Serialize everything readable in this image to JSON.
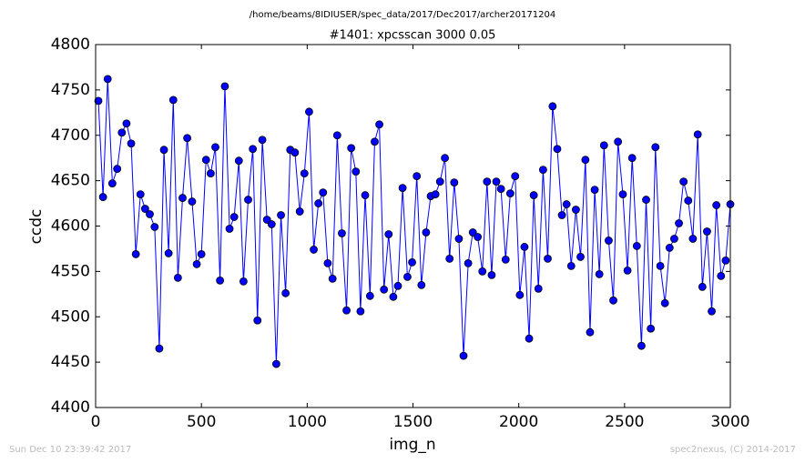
{
  "chart_data": {
    "type": "line",
    "suptitle": "/home/beams/8IDIUSER/spec_data/2017/Dec2017/archer20171204",
    "title": "#1401: xpcsscan 3000 0.05",
    "xlabel": "img_n",
    "ylabel": "ccdc",
    "footer": {
      "left": "Sun Dec 10 23:39:42 2017",
      "right": "spec2nexus, (C) 2014-2017"
    },
    "color": "#0000ff",
    "xlim": [
      0,
      3000
    ],
    "xticks": [
      0,
      500,
      1000,
      1500,
      2000,
      2500,
      3000
    ],
    "ylim": [
      4400,
      4800
    ],
    "yticks": [
      4400,
      4450,
      4500,
      4550,
      4600,
      4650,
      4700,
      4750,
      4800
    ],
    "x": [
      13,
      35,
      57,
      79,
      102,
      124,
      146,
      168,
      190,
      212,
      234,
      256,
      279,
      301,
      323,
      345,
      367,
      389,
      411,
      433,
      456,
      478,
      500,
      522,
      544,
      566,
      588,
      611,
      633,
      655,
      677,
      699,
      721,
      743,
      765,
      788,
      810,
      832,
      854,
      876,
      898,
      920,
      942,
      965,
      987,
      1009,
      1031,
      1053,
      1075,
      1097,
      1120,
      1142,
      1164,
      1186,
      1208,
      1230,
      1252,
      1274,
      1297,
      1319,
      1341,
      1363,
      1385,
      1407,
      1429,
      1451,
      1474,
      1496,
      1518,
      1540,
      1562,
      1584,
      1606,
      1628,
      1651,
      1673,
      1695,
      1717,
      1739,
      1761,
      1783,
      1806,
      1828,
      1850,
      1872,
      1894,
      1916,
      1938,
      1960,
      1983,
      2005,
      2027,
      2049,
      2071,
      2093,
      2115,
      2137,
      2160,
      2182,
      2204,
      2226,
      2248,
      2270,
      2292,
      2315,
      2337,
      2359,
      2381,
      2403,
      2425,
      2447,
      2469,
      2492,
      2514,
      2536,
      2558,
      2580,
      2602,
      2624,
      2646,
      2669,
      2691,
      2713,
      2735,
      2757,
      2779,
      2801,
      2823,
      2846,
      2868,
      2890,
      2912,
      2934,
      2956,
      2978,
      3000
    ],
    "values": [
      4738,
      4632,
      4762,
      4647,
      4663,
      4703,
      4713,
      4691,
      4569,
      4635,
      4619,
      4613,
      4599,
      4465,
      4684,
      4570,
      4739,
      4543,
      4631,
      4697,
      4627,
      4558,
      4569,
      4673,
      4658,
      4687,
      4540,
      4754,
      4597,
      4610,
      4672,
      4539,
      4629,
      4685,
      4496,
      4695,
      4607,
      4602,
      4448,
      4612,
      4526,
      4684,
      4681,
      4616,
      4658,
      4726,
      4574,
      4625,
      4637,
      4559,
      4542,
      4700,
      4592,
      4507,
      4686,
      4660,
      4506,
      4634,
      4523,
      4693,
      4712,
      4530,
      4591,
      4522,
      4534,
      4642,
      4544,
      4560,
      4655,
      4535,
      4593,
      4633,
      4635,
      4649,
      4675,
      4564,
      4648,
      4586,
      4457,
      4559,
      4593,
      4588,
      4550,
      4649,
      4546,
      4649,
      4641,
      4563,
      4636,
      4655,
      4524,
      4577,
      4476,
      4634,
      4531,
      4662,
      4564,
      4732,
      4685,
      4612,
      4624,
      4556,
      4618,
      4566,
      4673,
      4483,
      4640,
      4547,
      4689,
      4584,
      4518,
      4693,
      4635,
      4551,
      4675,
      4578,
      4468,
      4629,
      4487,
      4687,
      4556,
      4515,
      4576,
      4586,
      4603,
      4649,
      4628,
      4586,
      4701,
      4533,
      4594,
      4506,
      4623,
      4545,
      4562,
      4624
    ]
  }
}
